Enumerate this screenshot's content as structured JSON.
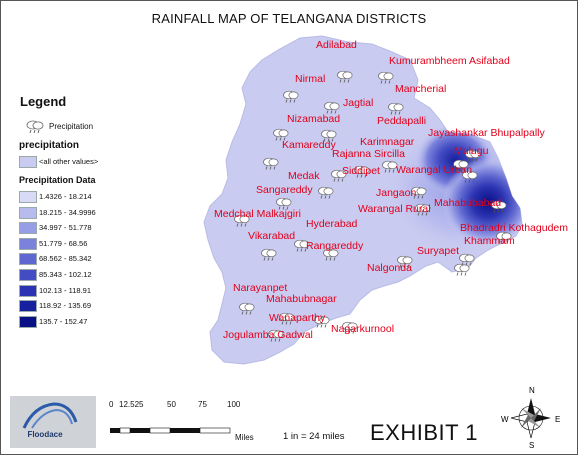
{
  "title": "RAINFALL MAP OF TELANGANA DISTRICTS",
  "colors": {
    "label": "#e3001b",
    "base_fill": "#c9cbf0",
    "state_outline": "#b8bbe6"
  },
  "legend": {
    "heading": "Legend",
    "precip_icon_label": "Precipitation",
    "precip_icon": "rain-cloud-icon",
    "section_precipitation": "precipitation",
    "all_other_values": "<all other values>",
    "section_data": "Precipitation Data",
    "classes": [
      {
        "range": "1.4326 - 18.214",
        "color": "#d9dbf6"
      },
      {
        "range": "18.215 - 34.9996",
        "color": "#b7bbee"
      },
      {
        "range": "34.997 - 51.778",
        "color": "#989ee6"
      },
      {
        "range": "51.779 - 68.56",
        "color": "#7b82dc"
      },
      {
        "range": "68.562 - 85.342",
        "color": "#5f67d0"
      },
      {
        "range": "85.343 - 102.12",
        "color": "#434cc2"
      },
      {
        "range": "102.13 - 118.91",
        "color": "#2b33b2"
      },
      {
        "range": "118.92 - 135.69",
        "color": "#17209f"
      },
      {
        "range": "135.7 - 152.47",
        "color": "#0a1186"
      }
    ]
  },
  "districts": [
    "Adilabad",
    "Kumurambheem Asifabad",
    "Nirmal",
    "Mancherial",
    "Jagtial",
    "Peddapalli",
    "Nizamabad",
    "Jayashankar Bhupalpally",
    "Karimnagar",
    "Mulugu",
    "Kamareddy",
    "Rajanna Sircilla",
    "Siddipet",
    "Warangal Urban",
    "Medak",
    "Sangareddy",
    "Jangaon",
    "Mahabubabad",
    "Medchal Malkajgiri",
    "Warangal Rural",
    "Hyderabad",
    "Bhadradri Kothagudem",
    "Vikarabad",
    "Khammam",
    "Rangareddy",
    "Suryapet",
    "Nalgonda",
    "Narayanpet",
    "Mahabubnagar",
    "Wanaparthy",
    "Nagarkurnool",
    "Jogulamba Gadwal"
  ],
  "scale": {
    "ticks": [
      "0",
      "12.525",
      "50",
      "75",
      "100"
    ],
    "unit": "Miles",
    "ratio": "1 in = 24 miles"
  },
  "logo_text": "Floodace",
  "exhibit": "EXHIBIT 1",
  "compass": {
    "n": "N",
    "e": "E",
    "s": "S",
    "w": "W"
  }
}
